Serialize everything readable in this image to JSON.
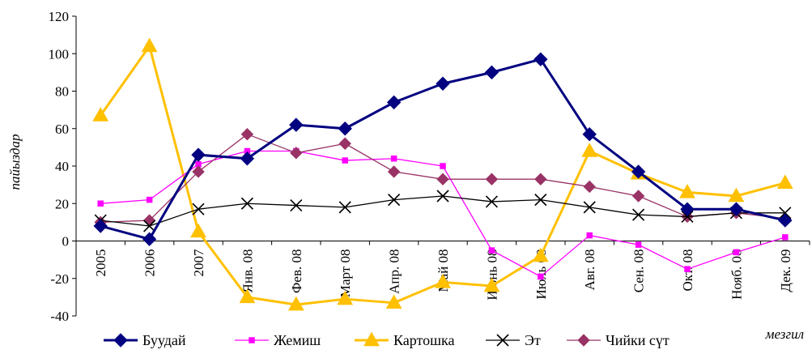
{
  "chart_data": {
    "type": "line",
    "title": "",
    "xlabel": "мезгил",
    "ylabel": "пайыздар",
    "ylim": [
      -40,
      120
    ],
    "yticks": [
      -40,
      -20,
      0,
      20,
      40,
      60,
      80,
      100,
      120
    ],
    "grid": false,
    "legend_position": "bottom",
    "categories": [
      "2005",
      "2006",
      "2007",
      "Янв. 08",
      "Фев. 08",
      "Март 08",
      "Апр. 08",
      "Май 08",
      "Июнь 08",
      "Июль 08",
      "Авг. 08",
      "Сен. 08",
      "Окт. 08",
      "Нояб. 08",
      "Дек. 09"
    ],
    "series": [
      {
        "name": "Буудай",
        "color": "#000080",
        "marker": "diamond",
        "values": [
          8,
          1,
          46,
          44,
          62,
          60,
          74,
          84,
          90,
          97,
          57,
          37,
          17,
          17,
          11
        ]
      },
      {
        "name": "Жемиш",
        "color": "#ff00ff",
        "marker": "square",
        "values": [
          20,
          22,
          41,
          48,
          48,
          43,
          44,
          40,
          -5,
          -19,
          3,
          -2,
          -15,
          -6,
          2
        ]
      },
      {
        "name": "Картошка",
        "color": "#ffc000",
        "marker": "triangle",
        "values": [
          67,
          104,
          5,
          -30,
          -34,
          -31,
          -33,
          -22,
          -24,
          -8,
          48,
          36,
          26,
          24,
          31
        ]
      },
      {
        "name": "Эт",
        "color": "#000000",
        "marker": "x",
        "values": [
          11,
          8,
          17,
          20,
          19,
          18,
          22,
          24,
          21,
          22,
          18,
          14,
          13,
          15,
          15
        ]
      },
      {
        "name": "Чийки сүт",
        "color": "#993366",
        "marker": "diamond",
        "values": [
          10,
          11,
          37,
          57,
          47,
          52,
          37,
          33,
          33,
          33,
          29,
          24,
          13,
          15,
          12
        ]
      }
    ]
  }
}
